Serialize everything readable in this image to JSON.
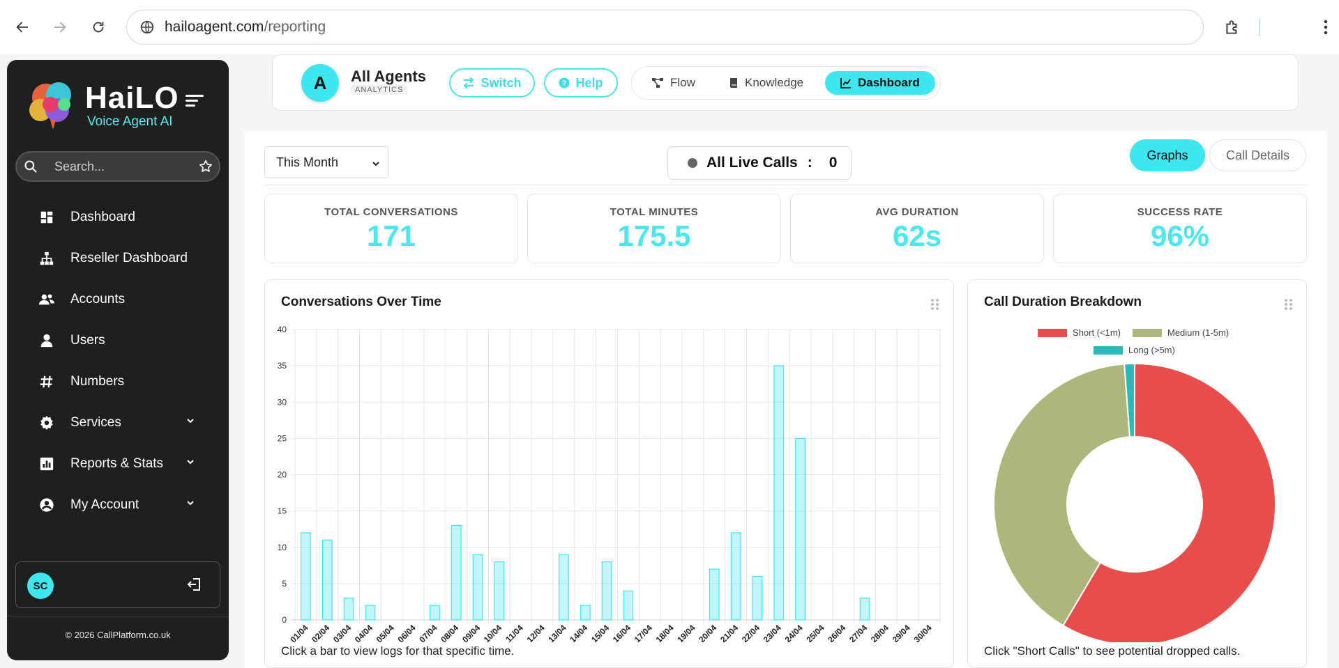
{
  "browser": {
    "url_host": "hailoagent.com",
    "url_path": "/reporting"
  },
  "sidebar": {
    "brand": "HaiLO",
    "brand_sub": "Voice Agent AI",
    "search_placeholder": "Search...",
    "items": [
      {
        "label": "Dashboard",
        "icon": "dashboard-icon"
      },
      {
        "label": "Reseller Dashboard",
        "icon": "sitemap-icon"
      },
      {
        "label": "Accounts",
        "icon": "accounts-icon"
      },
      {
        "label": "Users",
        "icon": "user-icon"
      },
      {
        "label": "Numbers",
        "icon": "hash-icon"
      },
      {
        "label": "Services",
        "icon": "gear-icon",
        "has_submenu": true
      },
      {
        "label": "Reports & Stats",
        "icon": "chart-icon",
        "has_submenu": true
      },
      {
        "label": "My Account",
        "icon": "account-circle-icon",
        "has_submenu": true
      }
    ],
    "user_initials": "SC",
    "copyright": "© 2026 CallPlatform.co.uk"
  },
  "agent_bar": {
    "avatar_letter": "A",
    "name": "All Agents",
    "subtitle": "ANALYTICS",
    "switch_label": "Switch",
    "help_label": "Help",
    "segments": [
      {
        "label": "Flow",
        "icon": "flow-icon",
        "active": false
      },
      {
        "label": "Knowledge",
        "icon": "book-icon",
        "active": false
      },
      {
        "label": "Dashboard",
        "icon": "line-chart-icon",
        "active": true
      }
    ]
  },
  "toolbar": {
    "range": "This Month",
    "live_calls_label": "All Live Calls",
    "live_calls_colon": ":",
    "live_calls_value": "0",
    "tab_graphs": "Graphs",
    "tab_call_details": "Call Details"
  },
  "kpis": [
    {
      "label": "TOTAL CONVERSATIONS",
      "value": "171"
    },
    {
      "label": "TOTAL MINUTES",
      "value": "175.5"
    },
    {
      "label": "AVG DURATION",
      "value": "62s"
    },
    {
      "label": "SUCCESS RATE",
      "value": "96%"
    }
  ],
  "colors": {
    "accent": "#3ee6ef",
    "short": "#e84c4b",
    "medium": "#afb67c",
    "long": "#2bbab9"
  },
  "conversations_card": {
    "title": "Conversations Over Time",
    "footer": "Click a bar to view logs for that specific time."
  },
  "duration_card": {
    "title": "Call Duration Breakdown",
    "footer": "Click \"Short Calls\" to see potential dropped calls."
  },
  "chart_data": [
    {
      "type": "bar",
      "title": "Conversations Over Time",
      "categories": [
        "01/04",
        "02/04",
        "03/04",
        "04/04",
        "05/04",
        "06/04",
        "07/04",
        "08/04",
        "09/04",
        "10/04",
        "11/04",
        "12/04",
        "13/04",
        "14/04",
        "15/04",
        "16/04",
        "17/04",
        "18/04",
        "19/04",
        "20/04",
        "21/04",
        "22/04",
        "23/04",
        "24/04",
        "25/04",
        "26/04",
        "27/04",
        "28/04",
        "29/04",
        "30/04"
      ],
      "values": [
        12,
        11,
        3,
        2,
        0,
        0,
        2,
        13,
        9,
        8,
        0,
        0,
        9,
        2,
        8,
        4,
        0,
        0,
        0,
        7,
        12,
        6,
        35,
        25,
        0,
        0,
        3,
        0,
        0,
        0
      ],
      "ylim": [
        0,
        40
      ],
      "yticks": [
        0,
        5,
        10,
        15,
        20,
        25,
        30,
        35,
        40
      ],
      "grid": true
    },
    {
      "type": "pie",
      "title": "Call Duration Breakdown",
      "labels": [
        "Short (<1m)",
        "Medium (1-5m)",
        "Long (>5m)"
      ],
      "values": [
        100,
        69,
        2
      ],
      "donut": true,
      "legend": "top"
    }
  ]
}
